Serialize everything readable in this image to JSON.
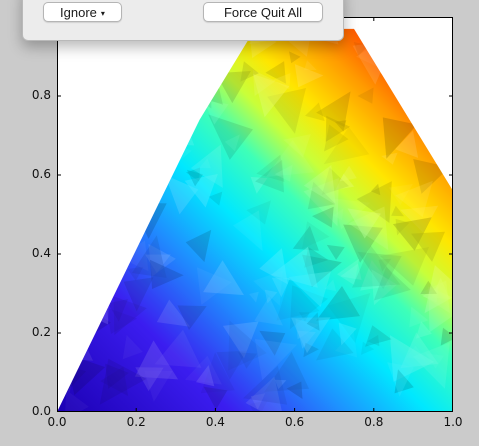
{
  "dialog": {
    "ignore_label": "Ignore",
    "dropdown_glyph": "▾",
    "force_quit_label": "Force Quit All"
  },
  "chart_data": {
    "type": "heatmap",
    "colormap": "jet",
    "xlim": [
      0.0,
      1.0
    ],
    "ylim": [
      0.0,
      1.0
    ],
    "xticks": [
      "0.0",
      "0.2",
      "0.4",
      "0.6",
      "0.8",
      "1.0"
    ],
    "yticks": [
      "0.0",
      "0.2",
      "0.4",
      "0.6",
      "0.8"
    ],
    "x_tick_values": [
      0.0,
      0.2,
      0.4,
      0.6,
      0.8,
      1.0
    ],
    "y_tick_values": [
      0.0,
      0.2,
      0.4,
      0.6,
      0.8
    ],
    "region_vertices": [
      [
        0.0,
        0.0
      ],
      [
        0.36,
        0.74
      ],
      [
        0.5,
        0.97
      ],
      [
        0.75,
        0.97
      ],
      [
        1.0,
        0.56
      ],
      [
        1.0,
        0.0
      ]
    ],
    "region_fill_range": [
      0.0,
      1.0
    ],
    "grid": false,
    "title": "",
    "xlabel": "",
    "ylabel": ""
  }
}
